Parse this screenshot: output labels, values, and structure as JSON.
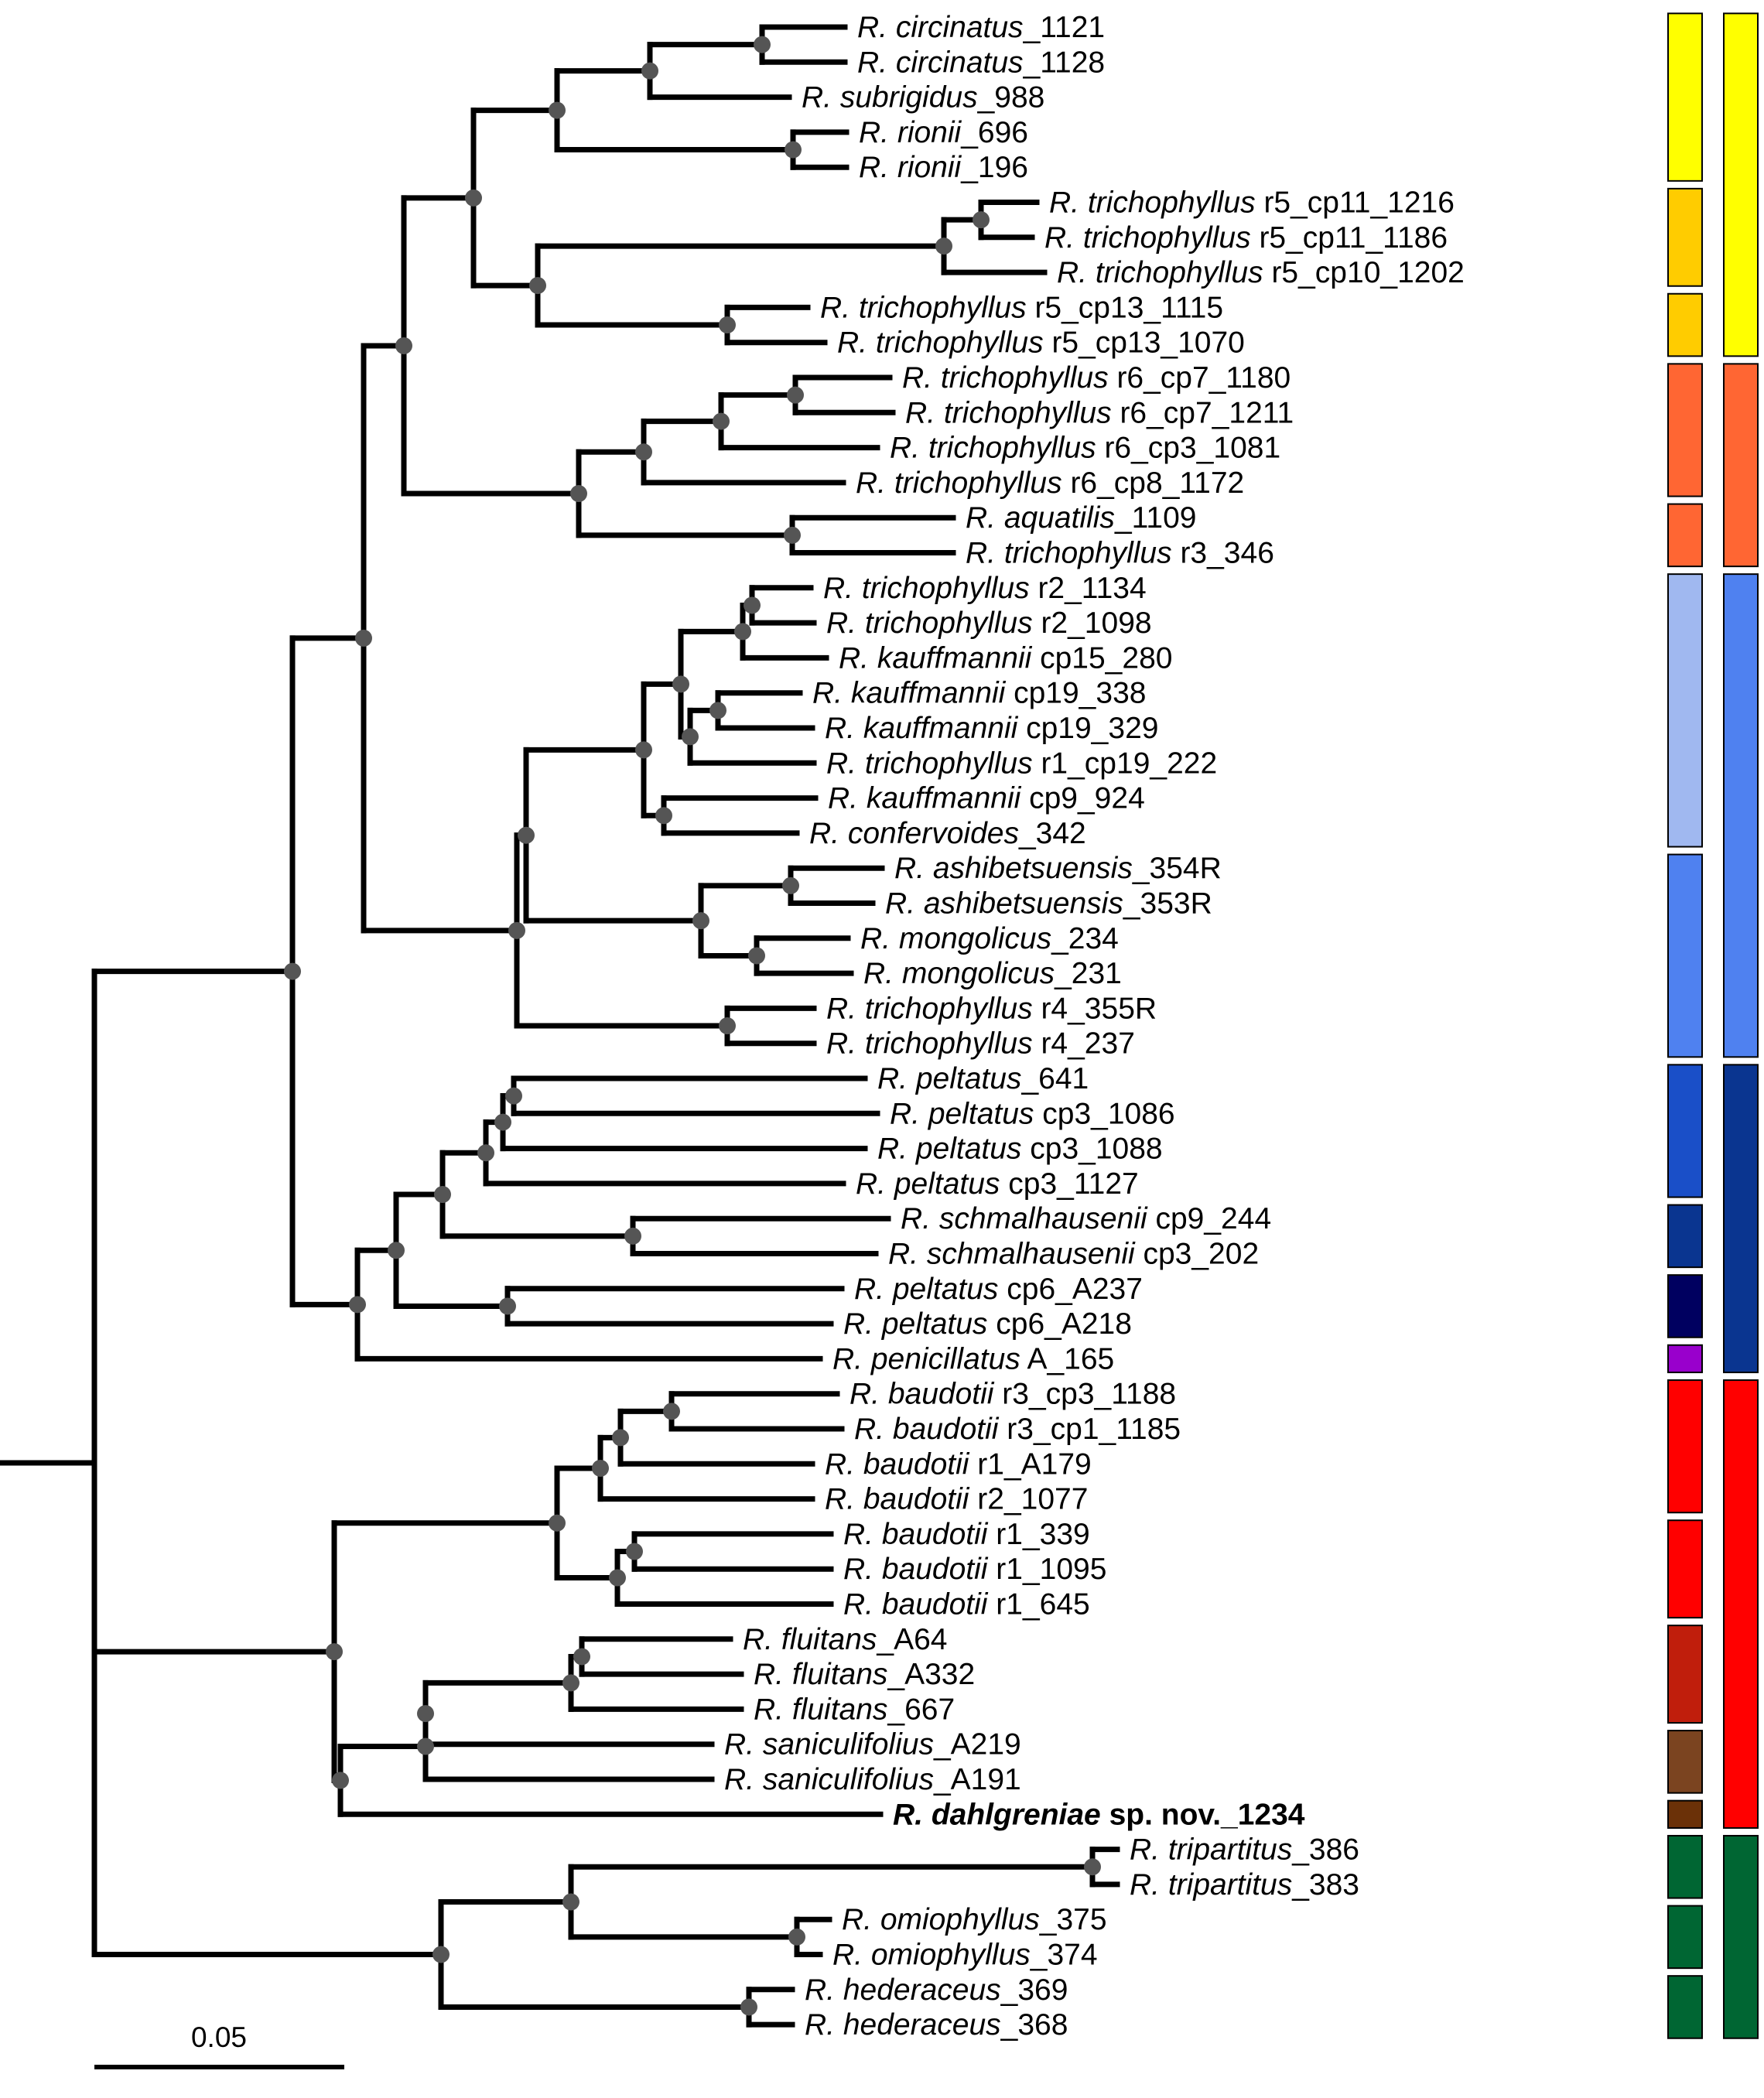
{
  "tree": {
    "leaves": [
      {
        "id": 1,
        "species": "R. circinatus",
        "suffix": "_1121"
      },
      {
        "id": 2,
        "species": "R. circinatus",
        "suffix": "_1128"
      },
      {
        "id": 3,
        "species": "R. subrigidus",
        "suffix": "_988"
      },
      {
        "id": 4,
        "species": "R. rionii",
        "suffix": "_696"
      },
      {
        "id": 5,
        "species": "R. rionii",
        "suffix": "_196"
      },
      {
        "id": 6,
        "species": "R. trichophyllus",
        "suffix": " r5_cp11_1216"
      },
      {
        "id": 7,
        "species": "R. trichophyllus",
        "suffix": " r5_cp11_1186"
      },
      {
        "id": 8,
        "species": "R. trichophyllus",
        "suffix": " r5_cp10_1202"
      },
      {
        "id": 9,
        "species": "R. trichophyllus",
        "suffix": " r5_cp13_1115"
      },
      {
        "id": 10,
        "species": "R. trichophyllus",
        "suffix": " r5_cp13_1070"
      },
      {
        "id": 11,
        "species": "R. trichophyllus",
        "suffix": " r6_cp7_1180"
      },
      {
        "id": 12,
        "species": "R. trichophyllus",
        "suffix": " r6_cp7_1211"
      },
      {
        "id": 13,
        "species": "R. trichophyllus",
        "suffix": " r6_cp3_1081"
      },
      {
        "id": 14,
        "species": "R. trichophyllus",
        "suffix": " r6_cp8_1172"
      },
      {
        "id": 15,
        "species": "R. aquatilis",
        "suffix": "_1109"
      },
      {
        "id": 16,
        "species": "R. trichophyllus",
        "suffix": " r3_346"
      },
      {
        "id": 17,
        "species": "R. trichophyllus",
        "suffix": " r2_1134"
      },
      {
        "id": 18,
        "species": "R. trichophyllus",
        "suffix": " r2_1098"
      },
      {
        "id": 19,
        "species": "R. kauffmannii",
        "suffix": " cp15_280"
      },
      {
        "id": 20,
        "species": "R. kauffmannii",
        "suffix": " cp19_338"
      },
      {
        "id": 21,
        "species": "R. kauffmannii",
        "suffix": " cp19_329"
      },
      {
        "id": 22,
        "species": "R. trichophyllus",
        "suffix": " r1_cp19_222"
      },
      {
        "id": 23,
        "species": "R. kauffmannii",
        "suffix": " cp9_924"
      },
      {
        "id": 24,
        "species": "R. confervoides",
        "suffix": "_342"
      },
      {
        "id": 25,
        "species": "R. ashibetsuensis",
        "suffix": "_354R"
      },
      {
        "id": 26,
        "species": "R. ashibetsuensis",
        "suffix": "_353R"
      },
      {
        "id": 27,
        "species": "R. mongolicus",
        "suffix": "_234"
      },
      {
        "id": 28,
        "species": "R. mongolicus",
        "suffix": "_231"
      },
      {
        "id": 29,
        "species": "R. trichophyllus",
        "suffix": " r4_355R"
      },
      {
        "id": 30,
        "species": "R. trichophyllus",
        "suffix": " r4_237"
      },
      {
        "id": 31,
        "species": "R. peltatus",
        "suffix": "_641"
      },
      {
        "id": 32,
        "species": "R. peltatus",
        "suffix": " cp3_1086"
      },
      {
        "id": 33,
        "species": "R. peltatus",
        "suffix": " cp3_1088"
      },
      {
        "id": 34,
        "species": "R. peltatus",
        "suffix": " cp3_1127"
      },
      {
        "id": 35,
        "species": "R. schmalhausenii",
        "suffix": " cp9_244"
      },
      {
        "id": 36,
        "species": "R. schmalhausenii",
        "suffix": " cp3_202"
      },
      {
        "id": 37,
        "species": "R. peltatus",
        "suffix": " cp6_A237"
      },
      {
        "id": 38,
        "species": "R. peltatus",
        "suffix": " cp6_A218"
      },
      {
        "id": 39,
        "species": "R. penicillatus",
        "suffix": " A_165"
      },
      {
        "id": 40,
        "species": "R. baudotii",
        "suffix": " r3_cp3_1188"
      },
      {
        "id": 41,
        "species": "R. baudotii",
        "suffix": " r3_cp1_1185"
      },
      {
        "id": 42,
        "species": "R. baudotii",
        "suffix": " r1_A179"
      },
      {
        "id": 43,
        "species": "R. baudotii",
        "suffix": " r2_1077"
      },
      {
        "id": 44,
        "species": "R. baudotii",
        "suffix": " r1_339"
      },
      {
        "id": 45,
        "species": "R. baudotii",
        "suffix": " r1_1095"
      },
      {
        "id": 46,
        "species": "R. baudotii",
        "suffix": " r1_645"
      },
      {
        "id": 47,
        "species": "R. fluitans",
        "suffix": "_A64"
      },
      {
        "id": 48,
        "species": "R. fluitans",
        "suffix": "_A332"
      },
      {
        "id": 49,
        "species": "R. fluitans",
        "suffix": "_667"
      },
      {
        "id": 50,
        "species": "R. saniculifolius",
        "suffix": "_A219"
      },
      {
        "id": 51,
        "species": "R. saniculifolius",
        "suffix": "_A191"
      },
      {
        "id": 52,
        "species": "R. dahlgreniae",
        "suffix": " sp. nov._1234",
        "bold": true
      },
      {
        "id": 53,
        "species": "R. tripartitus",
        "suffix": "_386"
      },
      {
        "id": 54,
        "species": "R. tripartitus",
        "suffix": "_383"
      },
      {
        "id": 55,
        "species": "R. omiophyllus",
        "suffix": "_375"
      },
      {
        "id": 56,
        "species": "R. omiophyllus",
        "suffix": "_374"
      },
      {
        "id": 57,
        "species": "R. hederaceus",
        "suffix": "_369"
      },
      {
        "id": 58,
        "species": "R. hederaceus",
        "suffix": "_368"
      }
    ]
  },
  "scale_bar": {
    "label": "0.05"
  },
  "colors": {
    "branch": "#000000",
    "node": "#555555",
    "yellow": "#ffff00",
    "gold": "#ffcc00",
    "orange": "#ff6633",
    "light_blue": "#a0b8f0",
    "blue": "#4f81f0",
    "royal_blue": "#1a4fc8",
    "dark_blue": "#0a3590",
    "navy": "#000060",
    "purple": "#9900cc",
    "red": "#ff0000",
    "dark_red": "#c01e0c",
    "brown": "#7b4420",
    "dark_brown": "#6b3108",
    "green": "#006633"
  },
  "color_bars": {
    "inner": [
      {
        "from": 1,
        "to": 5,
        "color": "yellow"
      },
      {
        "from": 6,
        "to": 8,
        "color": "gold"
      },
      {
        "from": 9,
        "to": 10,
        "color": "gold"
      },
      {
        "from": 11,
        "to": 14,
        "color": "orange"
      },
      {
        "from": 15,
        "to": 16,
        "color": "orange"
      },
      {
        "from": 17,
        "to": 24,
        "color": "light_blue"
      },
      {
        "from": 25,
        "to": 30,
        "color": "blue"
      },
      {
        "from": 31,
        "to": 34,
        "color": "royal_blue"
      },
      {
        "from": 35,
        "to": 36,
        "color": "dark_blue"
      },
      {
        "from": 37,
        "to": 38,
        "color": "navy"
      },
      {
        "from": 39,
        "to": 39,
        "color": "purple"
      },
      {
        "from": 40,
        "to": 43,
        "color": "red"
      },
      {
        "from": 44,
        "to": 46,
        "color": "red"
      },
      {
        "from": 47,
        "to": 49,
        "color": "dark_red"
      },
      {
        "from": 50,
        "to": 51,
        "color": "brown"
      },
      {
        "from": 52,
        "to": 52,
        "color": "dark_brown"
      },
      {
        "from": 53,
        "to": 54,
        "color": "green"
      },
      {
        "from": 55,
        "to": 56,
        "color": "green"
      },
      {
        "from": 57,
        "to": 58,
        "color": "green"
      }
    ],
    "outer": [
      {
        "from": 1,
        "to": 10,
        "color": "yellow"
      },
      {
        "from": 11,
        "to": 16,
        "color": "orange"
      },
      {
        "from": 17,
        "to": 30,
        "color": "blue"
      },
      {
        "from": 31,
        "to": 39,
        "color": "dark_blue"
      },
      {
        "from": 40,
        "to": 52,
        "color": "red"
      },
      {
        "from": 53,
        "to": 58,
        "color": "green"
      }
    ]
  }
}
